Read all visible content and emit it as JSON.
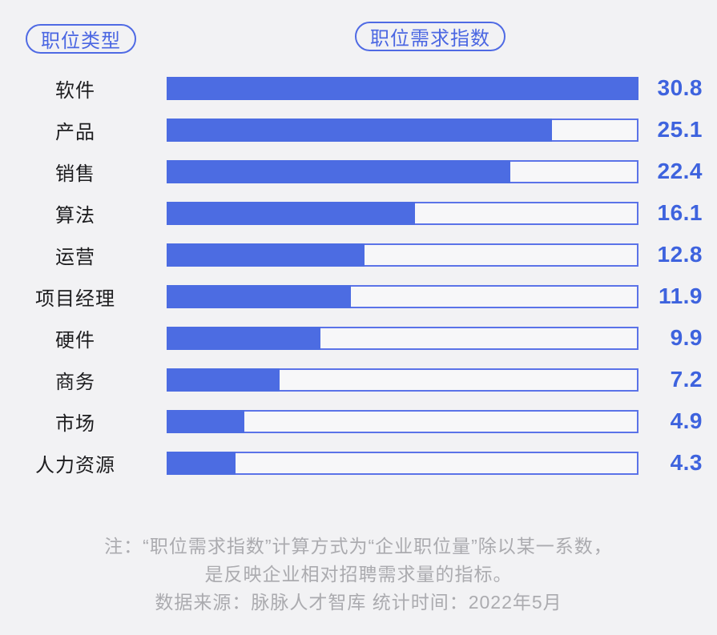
{
  "header": {
    "left_badge": "职位类型",
    "right_badge": "职位需求指数"
  },
  "chart_data": {
    "type": "bar",
    "orientation": "horizontal",
    "title": "职位需求指数",
    "category_label": "职位类型",
    "categories": [
      "软件",
      "产品",
      "销售",
      "算法",
      "运营",
      "项目经理",
      "硬件",
      "商务",
      "市场",
      "人力资源"
    ],
    "values": [
      30.8,
      25.1,
      22.4,
      16.1,
      12.8,
      11.9,
      9.9,
      7.2,
      4.9,
      4.3
    ],
    "xlim": [
      0,
      30.8
    ],
    "grid": false,
    "value_labels_position": "right",
    "colors": {
      "bar_fill": "#4c6ce2",
      "track_border": "#5b73e8",
      "track_background": "#f7f7f9",
      "value_text": "#3e63de",
      "category_text": "#1d1d1f",
      "badge_accent": "#4a66e2",
      "footer_text": "#ababaf",
      "page_background": "#f2f2f4"
    }
  },
  "footer": {
    "note_line1": "注：“职位需求指数”计算方式为“企业职位量”除以某一系数，",
    "note_line2": "是反映企业相对招聘需求量的指标。",
    "source_line": "数据来源：脉脉人才智库  统计时间：2022年5月"
  }
}
